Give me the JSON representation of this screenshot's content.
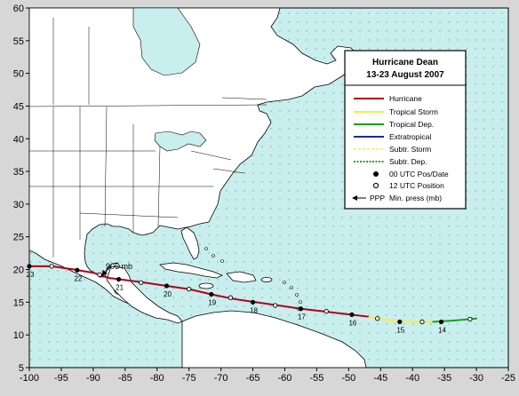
{
  "title": "Hurricane Dean",
  "subtitle": "13-23 August 2007",
  "colors": {
    "ocean": "#c9eeee",
    "land": "#ffffff",
    "coast": "#000000",
    "hurricane": "#b0001a",
    "tropical_storm": "#f6ef3c",
    "tropical_dep": "#17a11b",
    "extratropical": "#1a2a9a",
    "subtr_storm": "#f6ef3c",
    "subtr_dep": "#17a11b"
  },
  "axes": {
    "lon_ticks": [
      "-100",
      "-95",
      "-90",
      "-85",
      "-80",
      "-75",
      "-70",
      "-65",
      "-60",
      "-55",
      "-50",
      "-45",
      "-40",
      "-35",
      "-30",
      "-25"
    ],
    "lat_ticks": [
      "60",
      "55",
      "50",
      "45",
      "40",
      "35",
      "30",
      "25",
      "20",
      "15",
      "10",
      "5"
    ]
  },
  "legend": {
    "hurricane": "Hurricane",
    "tropical_storm": "Tropical Storm",
    "tropical_dep": "Tropical Dep.",
    "extratropical": "Extratropical",
    "subtr_storm": "Subtr. Storm",
    "subtr_dep": "Subtr. Dep.",
    "utc00": "00 UTC Pos/Date",
    "utc12": "12 UTC Position",
    "ppp_code": "PPP",
    "ppp_text": "Min. press (mb)"
  },
  "track": {
    "points": [
      {
        "lon": -30.0,
        "lat": 12.5,
        "stage": "dep"
      },
      {
        "lon": -33.5,
        "lat": 12.2,
        "stage": "dep"
      },
      {
        "lon": -37.0,
        "lat": 12.0,
        "stage": "dep"
      },
      {
        "lon": -40.5,
        "lat": 12.0,
        "stage": "storm"
      },
      {
        "lon": -44.0,
        "lat": 12.3,
        "stage": "storm"
      },
      {
        "lon": -47.0,
        "lat": 12.8,
        "stage": "storm"
      },
      {
        "lon": -50.5,
        "lat": 13.2,
        "stage": "hurricane"
      },
      {
        "lon": -54.0,
        "lat": 13.6,
        "stage": "hurricane"
      },
      {
        "lon": -57.5,
        "lat": 14.0,
        "stage": "hurricane"
      },
      {
        "lon": -61.0,
        "lat": 14.5,
        "stage": "hurricane"
      },
      {
        "lon": -64.5,
        "lat": 15.0,
        "stage": "hurricane"
      },
      {
        "lon": -68.0,
        "lat": 15.5,
        "stage": "hurricane"
      },
      {
        "lon": -71.5,
        "lat": 16.2,
        "stage": "hurricane"
      },
      {
        "lon": -75.0,
        "lat": 17.0,
        "stage": "hurricane"
      },
      {
        "lon": -78.5,
        "lat": 17.5,
        "stage": "hurricane"
      },
      {
        "lon": -82.0,
        "lat": 18.0,
        "stage": "hurricane"
      },
      {
        "lon": -85.0,
        "lat": 18.4,
        "stage": "hurricane"
      },
      {
        "lon": -87.5,
        "lat": 18.7,
        "stage": "hurricane"
      },
      {
        "lon": -90.0,
        "lat": 19.5,
        "stage": "hurricane"
      },
      {
        "lon": -93.0,
        "lat": 20.0,
        "stage": "hurricane"
      },
      {
        "lon": -96.5,
        "lat": 20.5,
        "stage": "hurricane"
      },
      {
        "lon": -100.0,
        "lat": 20.5,
        "stage": "hurricane"
      }
    ],
    "markers": [
      {
        "lon": -31.0,
        "lat": 12.4,
        "type": "12"
      },
      {
        "lon": -35.5,
        "lat": 12.0,
        "type": "00",
        "date": "14"
      },
      {
        "lon": -38.5,
        "lat": 12.0,
        "type": "12"
      },
      {
        "lon": -42.0,
        "lat": 12.0,
        "type": "00",
        "date": "15"
      },
      {
        "lon": -45.5,
        "lat": 12.5,
        "type": "12"
      },
      {
        "lon": -49.5,
        "lat": 13.1,
        "type": "00",
        "date": "16"
      },
      {
        "lon": -53.5,
        "lat": 13.6,
        "type": "12"
      },
      {
        "lon": -57.5,
        "lat": 14.0,
        "type": "00",
        "date": "17"
      },
      {
        "lon": -61.5,
        "lat": 14.5,
        "type": "12"
      },
      {
        "lon": -65.0,
        "lat": 15.0,
        "type": "00",
        "date": "18"
      },
      {
        "lon": -68.5,
        "lat": 15.7,
        "type": "12"
      },
      {
        "lon": -71.5,
        "lat": 16.2,
        "type": "00",
        "date": "19"
      },
      {
        "lon": -75.0,
        "lat": 17.0,
        "type": "12"
      },
      {
        "lon": -78.5,
        "lat": 17.5,
        "type": "00",
        "date": "20"
      },
      {
        "lon": -82.5,
        "lat": 18.0,
        "type": "12"
      },
      {
        "lon": -86.0,
        "lat": 18.5,
        "type": "00",
        "date": "21"
      },
      {
        "lon": -89.0,
        "lat": 19.2,
        "type": "12"
      },
      {
        "lon": -92.5,
        "lat": 19.9,
        "type": "00",
        "date": "22"
      },
      {
        "lon": -96.5,
        "lat": 20.5,
        "type": "12"
      },
      {
        "lon": -100.0,
        "lat": 20.5,
        "type": "00",
        "date": "23"
      }
    ],
    "pressure_label": "905 mb"
  }
}
